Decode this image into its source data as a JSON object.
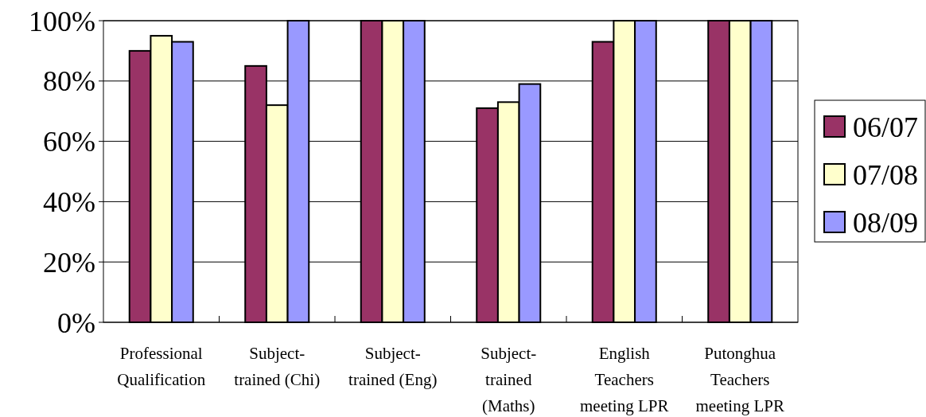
{
  "chart_data": {
    "type": "bar",
    "categories": [
      "Professional Qualification",
      "Subject-trained (Chi)",
      "Subject-trained (Eng)",
      "Subject-trained (Maths)",
      "English Teachers meeting LPR",
      "Putonghua Teachers meeting LPR"
    ],
    "series": [
      {
        "name": "06/07",
        "color": "#993366",
        "values": [
          90,
          85,
          100,
          71,
          93,
          100
        ]
      },
      {
        "name": "07/08",
        "color": "#ffffcc",
        "values": [
          95,
          72,
          100,
          73,
          100,
          100
        ]
      },
      {
        "name": "08/09",
        "color": "#9999ff",
        "values": [
          93,
          100,
          100,
          79,
          100,
          100
        ]
      }
    ],
    "ylim": [
      0,
      100
    ],
    "yticks": [
      {
        "value": 0,
        "label": "0%"
      },
      {
        "value": 20,
        "label": "20%"
      },
      {
        "value": 40,
        "label": "40%"
      },
      {
        "value": 60,
        "label": "60%"
      },
      {
        "value": 80,
        "label": "80%"
      },
      {
        "value": 100,
        "label": "100%"
      }
    ],
    "grid": "y",
    "legend": "right"
  }
}
